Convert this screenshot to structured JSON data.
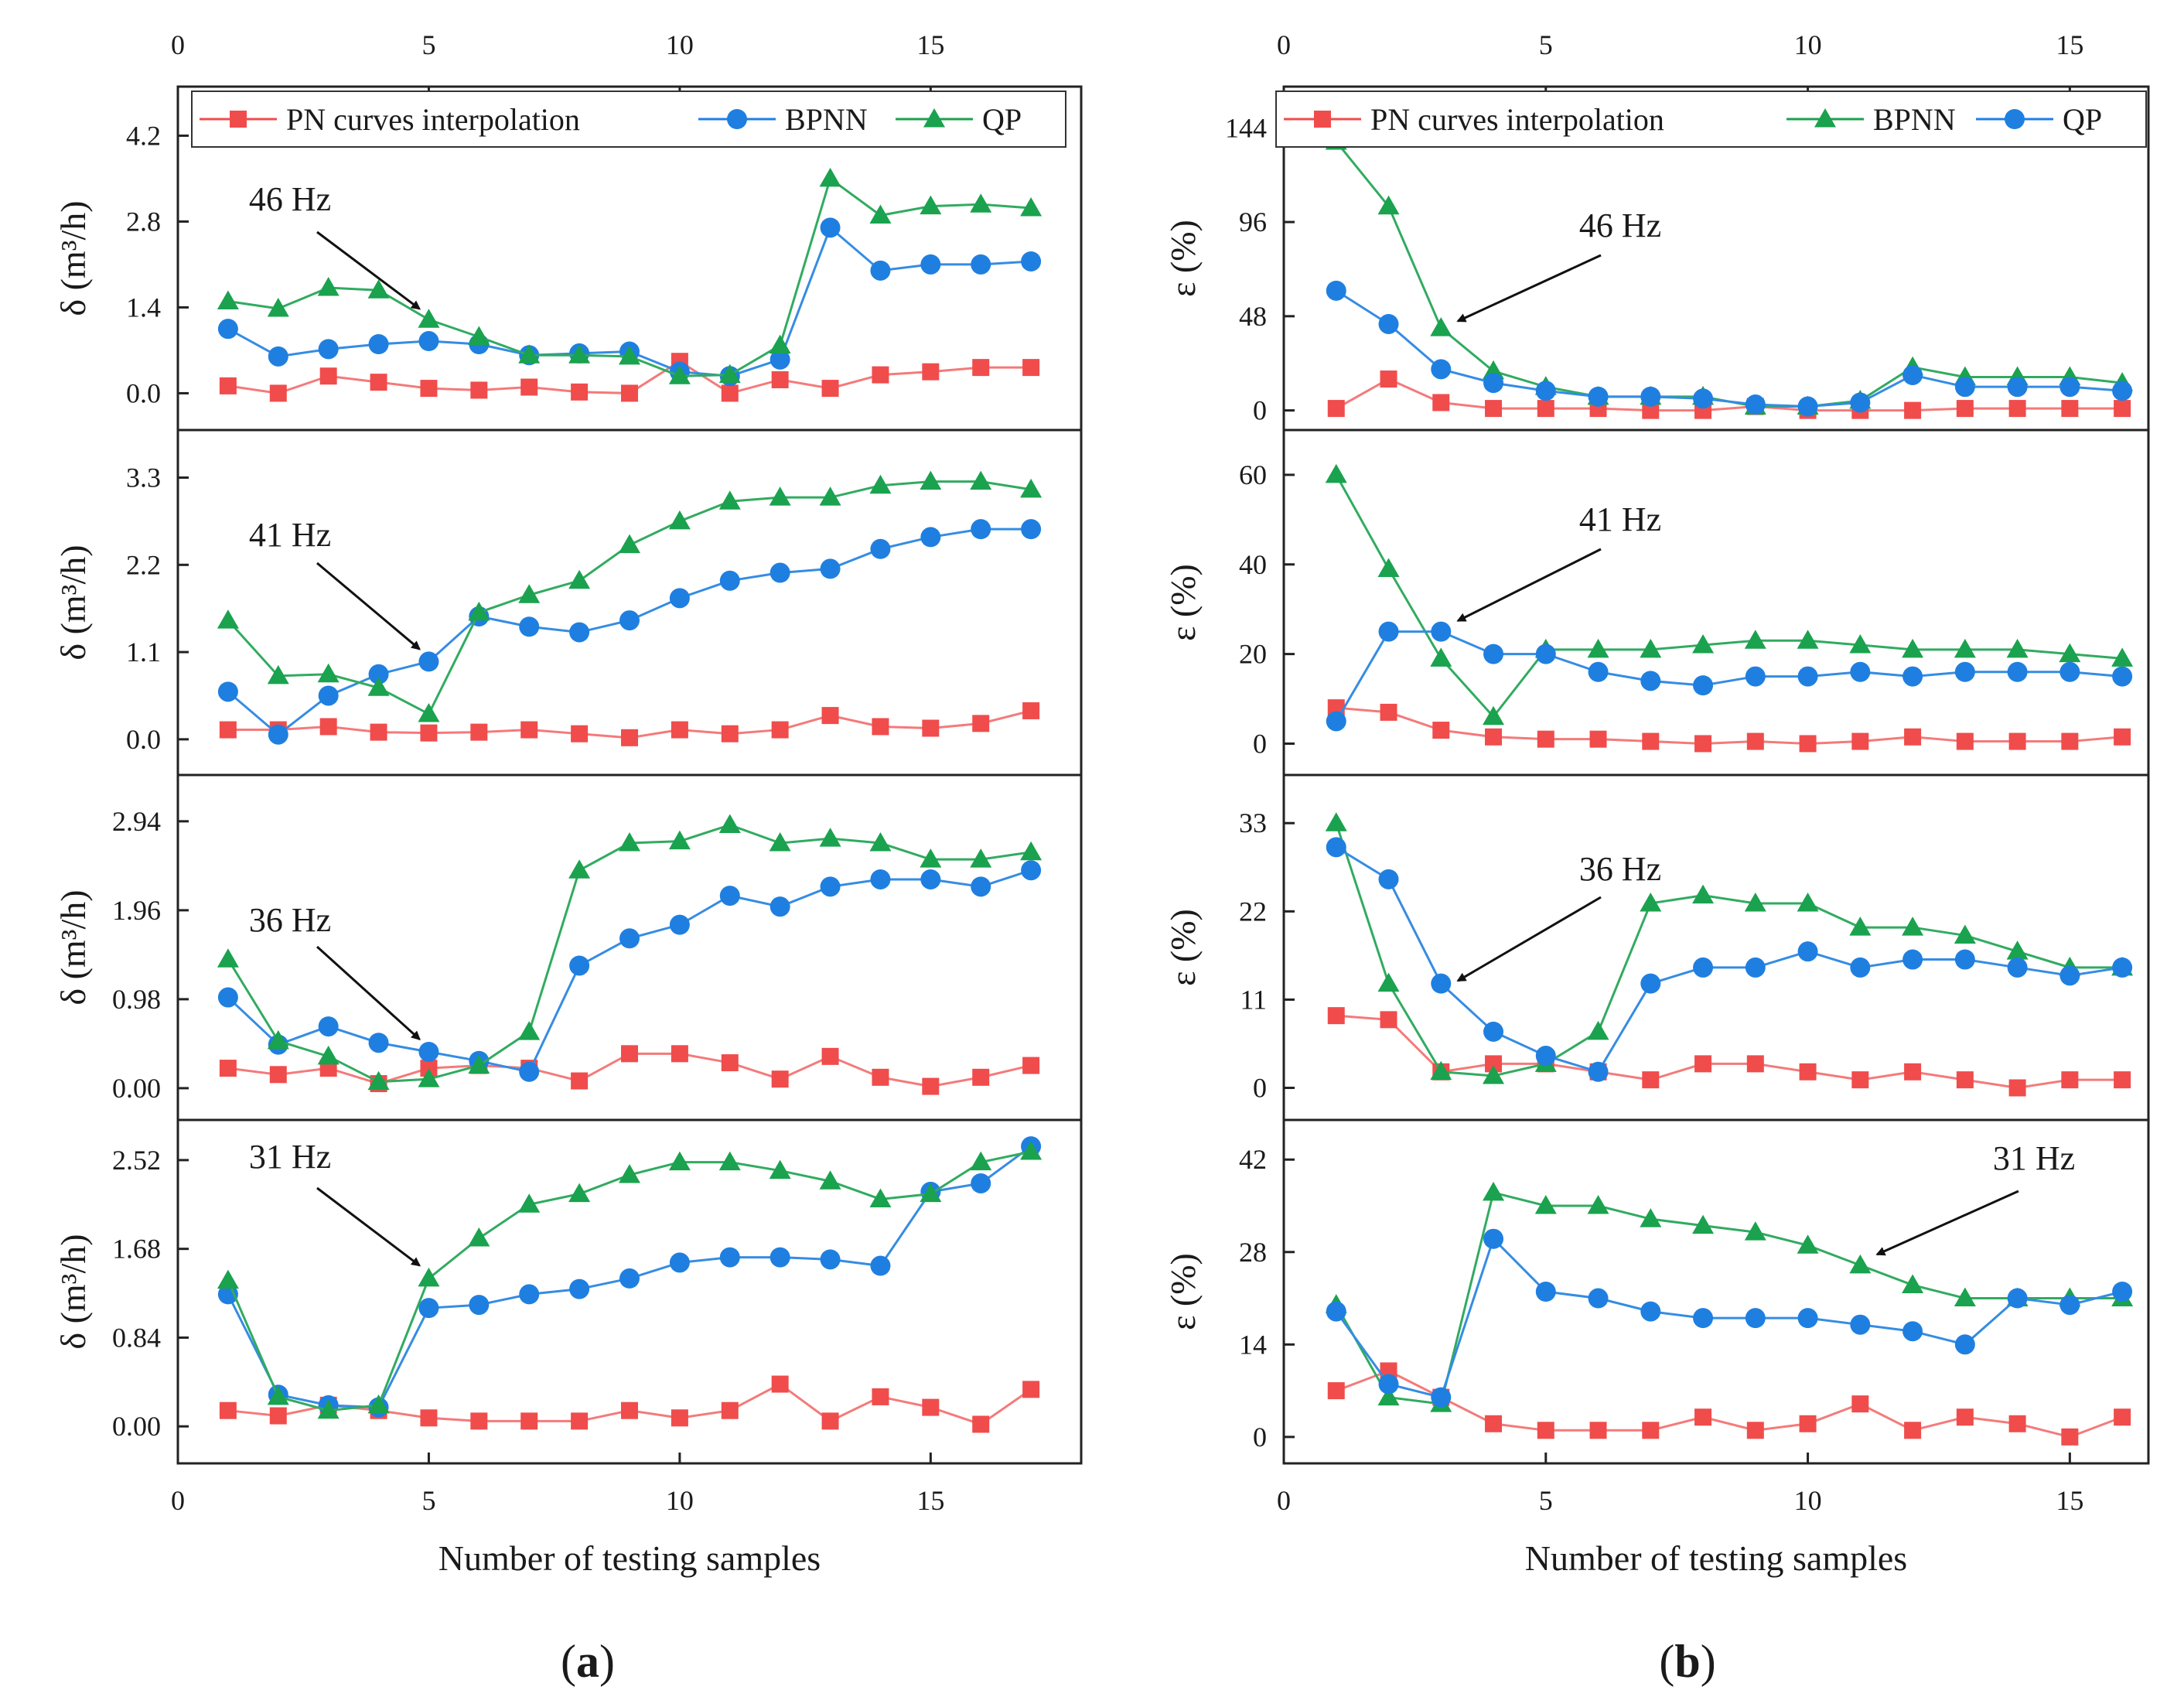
{
  "figure": {
    "panel_a_label": "(a)",
    "panel_a_letter": "a",
    "panel_b_label": "(b)",
    "panel_b_letter": "b"
  },
  "colors": {
    "pn": "#f04c4c",
    "pn_line": "#f47a7a",
    "bpnn_blue": "#1f7fe0",
    "qp_green": "#1aa24e"
  },
  "chart_data": [
    {
      "type": "line",
      "id": "a",
      "title": "(a)",
      "xlabel": "Number of testing samples",
      "ylabel": "δ (m³/h)",
      "xlim": [
        0,
        18
      ],
      "xticks": [
        0,
        5,
        10,
        15
      ],
      "legend": {
        "position": "top",
        "entries": [
          {
            "name": "PN curves interpolation",
            "color": "pn",
            "marker": "square"
          },
          {
            "name": "BPNN",
            "color": "bpnn_blue",
            "marker": "circle"
          },
          {
            "name": "QP",
            "color": "qp_green",
            "marker": "triangle"
          }
        ]
      },
      "x": [
        1,
        2,
        3,
        4,
        5,
        6,
        7,
        8,
        9,
        10,
        11,
        12,
        13,
        14,
        15,
        16,
        17
      ],
      "subplots": [
        {
          "annotation": "46 Hz",
          "arrow_to": [
            5,
            1.2
          ],
          "ylim": [
            -0.6,
            5.0
          ],
          "yticks": [
            0.0,
            1.4,
            2.8,
            4.2
          ],
          "ytick_labels": [
            "0.0",
            "1.4",
            "2.8",
            "4.2"
          ],
          "series": [
            {
              "name": "PN curves interpolation",
              "color": "pn",
              "marker": "square",
              "values": [
                0.12,
                0.0,
                0.28,
                0.18,
                0.08,
                0.05,
                0.1,
                0.02,
                0.0,
                0.52,
                0.0,
                0.22,
                0.08,
                0.3,
                0.35,
                0.42,
                0.42
              ]
            },
            {
              "name": "BPNN",
              "color": "bpnn_blue",
              "marker": "circle",
              "values": [
                1.05,
                0.6,
                0.72,
                0.8,
                0.85,
                0.8,
                0.62,
                0.65,
                0.68,
                0.35,
                0.28,
                0.55,
                2.7,
                2.0,
                2.1,
                2.1,
                2.15
              ]
            },
            {
              "name": "QP",
              "color": "qp_green",
              "marker": "triangle",
              "values": [
                1.5,
                1.38,
                1.72,
                1.68,
                1.2,
                0.92,
                0.62,
                0.62,
                0.6,
                0.28,
                0.3,
                0.78,
                3.5,
                2.9,
                3.05,
                3.08,
                3.02
              ]
            }
          ]
        },
        {
          "annotation": "41 Hz",
          "arrow_to": [
            5,
            1.0
          ],
          "ylim": [
            -0.45,
            3.9
          ],
          "yticks": [
            0.0,
            1.1,
            2.2,
            3.3
          ],
          "ytick_labels": [
            "0.0",
            "1.1",
            "2.2",
            "3.3"
          ],
          "series": [
            {
              "name": "PN curves interpolation",
              "color": "pn",
              "marker": "square",
              "values": [
                0.12,
                0.12,
                0.16,
                0.09,
                0.08,
                0.09,
                0.12,
                0.07,
                0.02,
                0.12,
                0.07,
                0.12,
                0.3,
                0.16,
                0.14,
                0.2,
                0.36
              ]
            },
            {
              "name": "BPNN",
              "color": "bpnn_blue",
              "marker": "circle",
              "values": [
                0.6,
                0.06,
                0.55,
                0.82,
                0.98,
                1.55,
                1.42,
                1.35,
                1.5,
                1.78,
                2.0,
                2.1,
                2.15,
                2.4,
                2.55,
                2.65,
                2.65
              ]
            },
            {
              "name": "QP",
              "color": "qp_green",
              "marker": "triangle",
              "values": [
                1.5,
                0.8,
                0.82,
                0.65,
                0.32,
                1.6,
                1.82,
                2.0,
                2.45,
                2.75,
                3.0,
                3.05,
                3.05,
                3.2,
                3.25,
                3.25,
                3.15
              ]
            }
          ]
        },
        {
          "annotation": "36 Hz",
          "arrow_to": [
            5,
            0.42
          ],
          "ylim": [
            -0.35,
            3.45
          ],
          "yticks": [
            0.0,
            0.98,
            1.96,
            2.94
          ],
          "ytick_labels": [
            "0.00",
            "0.98",
            "1.96",
            "2.94"
          ],
          "series": [
            {
              "name": "PN curves interpolation",
              "color": "pn",
              "marker": "square",
              "values": [
                0.22,
                0.15,
                0.22,
                0.05,
                0.22,
                0.25,
                0.22,
                0.08,
                0.38,
                0.38,
                0.28,
                0.1,
                0.35,
                0.12,
                0.02,
                0.12,
                0.25
              ]
            },
            {
              "name": "BPNN",
              "color": "bpnn_blue",
              "marker": "circle",
              "values": [
                1.0,
                0.48,
                0.68,
                0.5,
                0.4,
                0.3,
                0.18,
                1.35,
                1.65,
                1.8,
                2.12,
                2.0,
                2.22,
                2.3,
                2.3,
                2.22,
                2.4
              ]
            },
            {
              "name": "QP",
              "color": "qp_green",
              "marker": "triangle",
              "values": [
                1.42,
                0.52,
                0.35,
                0.07,
                0.1,
                0.25,
                0.62,
                2.4,
                2.7,
                2.72,
                2.9,
                2.7,
                2.75,
                2.7,
                2.52,
                2.52,
                2.6
              ]
            }
          ]
        },
        {
          "annotation": "31 Hz",
          "arrow_to": [
            5,
            1.42
          ],
          "ylim": [
            -0.35,
            2.9
          ],
          "yticks": [
            0.0,
            0.84,
            1.68,
            2.52
          ],
          "ytick_labels": [
            "0.00",
            "0.84",
            "1.68",
            "2.52"
          ],
          "series": [
            {
              "name": "PN curves interpolation",
              "color": "pn",
              "marker": "square",
              "values": [
                0.15,
                0.1,
                0.2,
                0.15,
                0.08,
                0.05,
                0.05,
                0.05,
                0.15,
                0.08,
                0.15,
                0.4,
                0.05,
                0.28,
                0.18,
                0.02,
                0.35
              ]
            },
            {
              "name": "BPNN",
              "color": "bpnn_blue",
              "marker": "circle",
              "values": [
                1.25,
                0.3,
                0.2,
                0.18,
                1.12,
                1.15,
                1.25,
                1.3,
                1.4,
                1.55,
                1.6,
                1.6,
                1.58,
                1.52,
                2.22,
                2.3,
                2.65
              ]
            },
            {
              "name": "QP",
              "color": "qp_green",
              "marker": "triangle",
              "values": [
                1.38,
                0.28,
                0.15,
                0.2,
                1.4,
                1.78,
                2.1,
                2.2,
                2.38,
                2.5,
                2.5,
                2.42,
                2.32,
                2.15,
                2.2,
                2.5,
                2.6
              ]
            }
          ]
        }
      ]
    },
    {
      "type": "line",
      "id": "b",
      "title": "(b)",
      "xlabel": "Number of testing samples",
      "ylabel": "ε (%)",
      "xlim": [
        0,
        16.5
      ],
      "xticks": [
        0,
        5,
        10,
        15
      ],
      "legend": {
        "position": "top",
        "entries": [
          {
            "name": "PN curves interpolation",
            "color": "pn",
            "marker": "square"
          },
          {
            "name": "BPNN",
            "color": "qp_green",
            "marker": "triangle"
          },
          {
            "name": "QP",
            "color": "bpnn_blue",
            "marker": "circle"
          }
        ]
      },
      "x": [
        1,
        2,
        3,
        4,
        5,
        6,
        7,
        8,
        9,
        10,
        11,
        12,
        13,
        14,
        15,
        16
      ],
      "subplots": [
        {
          "annotation": "46 Hz",
          "arrow_to": [
            3.5,
            40
          ],
          "ylim": [
            -10,
            165
          ],
          "yticks": [
            0,
            48,
            96,
            144
          ],
          "ytick_labels": [
            "0",
            "48",
            "96",
            "144"
          ],
          "series": [
            {
              "name": "PN curves interpolation",
              "color": "pn",
              "marker": "square",
              "values": [
                1,
                16,
                4,
                1,
                1,
                1,
                0,
                0,
                2,
                0,
                0,
                0,
                1,
                1,
                1,
                1
              ]
            },
            {
              "name": "BPNN",
              "color": "qp_green",
              "marker": "triangle",
              "values": [
                137,
                104,
                42,
                20,
                12,
                7,
                7,
                7,
                2,
                2,
                5,
                22,
                17,
                17,
                17,
                14
              ]
            },
            {
              "name": "QP",
              "color": "bpnn_blue",
              "marker": "circle",
              "values": [
                61,
                44,
                21,
                14,
                10,
                7,
                7,
                6,
                3,
                2,
                4,
                18,
                12,
                12,
                12,
                10
              ]
            }
          ]
        },
        {
          "annotation": "41 Hz",
          "arrow_to": [
            3.5,
            25
          ],
          "ylim": [
            -7,
            70
          ],
          "yticks": [
            0,
            20,
            40,
            60
          ],
          "ytick_labels": [
            "0",
            "20",
            "40",
            "60"
          ],
          "series": [
            {
              "name": "PN curves interpolation",
              "color": "pn",
              "marker": "square",
              "values": [
                8,
                7,
                3,
                1.5,
                1,
                1,
                0.5,
                0,
                0.5,
                0,
                0.5,
                1.5,
                0.5,
                0.5,
                0.5,
                1.5
              ]
            },
            {
              "name": "BPNN",
              "color": "qp_green",
              "marker": "triangle",
              "values": [
                60,
                39,
                19,
                6,
                21,
                21,
                21,
                22,
                23,
                23,
                22,
                21,
                21,
                21,
                20,
                19
              ]
            },
            {
              "name": "QP",
              "color": "bpnn_blue",
              "marker": "circle",
              "values": [
                5,
                25,
                25,
                20,
                20,
                16,
                14,
                13,
                15,
                15,
                16,
                15,
                16,
                16,
                16,
                15
              ]
            }
          ]
        },
        {
          "annotation": "36 Hz",
          "arrow_to": [
            3.5,
            12
          ],
          "ylim": [
            -4,
            39
          ],
          "yticks": [
            0,
            11,
            22,
            33
          ],
          "ytick_labels": [
            "0",
            "11",
            "22",
            "33"
          ],
          "series": [
            {
              "name": "PN curves interpolation",
              "color": "pn",
              "marker": "square",
              "values": [
                9,
                8.5,
                2,
                3,
                3,
                2,
                1,
                3,
                3,
                2,
                1,
                2,
                1,
                0,
                1,
                1
              ]
            },
            {
              "name": "BPNN",
              "color": "qp_green",
              "marker": "triangle",
              "values": [
                33,
                13,
                2,
                1.5,
                3,
                7,
                23,
                24,
                23,
                23,
                20,
                20,
                19,
                17,
                15,
                15
              ]
            },
            {
              "name": "QP",
              "color": "bpnn_blue",
              "marker": "circle",
              "values": [
                30,
                26,
                13,
                7,
                4,
                2,
                13,
                15,
                15,
                17,
                15,
                16,
                16,
                15,
                14,
                15
              ]
            }
          ]
        },
        {
          "annotation": "31 Hz",
          "arrow_to": [
            11.5,
            26
          ],
          "ylim": [
            -4,
            48
          ],
          "yticks": [
            0,
            14,
            28,
            42
          ],
          "ytick_labels": [
            "0",
            "14",
            "28",
            "42"
          ],
          "series": [
            {
              "name": "PN curves interpolation",
              "color": "pn",
              "marker": "square",
              "values": [
                7,
                10,
                6,
                2,
                1,
                1,
                1,
                3,
                1,
                2,
                5,
                1,
                3,
                2,
                0,
                3
              ]
            },
            {
              "name": "BPNN",
              "color": "qp_green",
              "marker": "triangle",
              "values": [
                20,
                6,
                5,
                37,
                35,
                35,
                33,
                32,
                31,
                29,
                26,
                23,
                21,
                21,
                21,
                21
              ]
            },
            {
              "name": "QP",
              "color": "bpnn_blue",
              "marker": "circle",
              "values": [
                19,
                8,
                6,
                30,
                22,
                21,
                19,
                18,
                18,
                18,
                17,
                16,
                14,
                21,
                20,
                22
              ]
            }
          ]
        }
      ]
    }
  ]
}
